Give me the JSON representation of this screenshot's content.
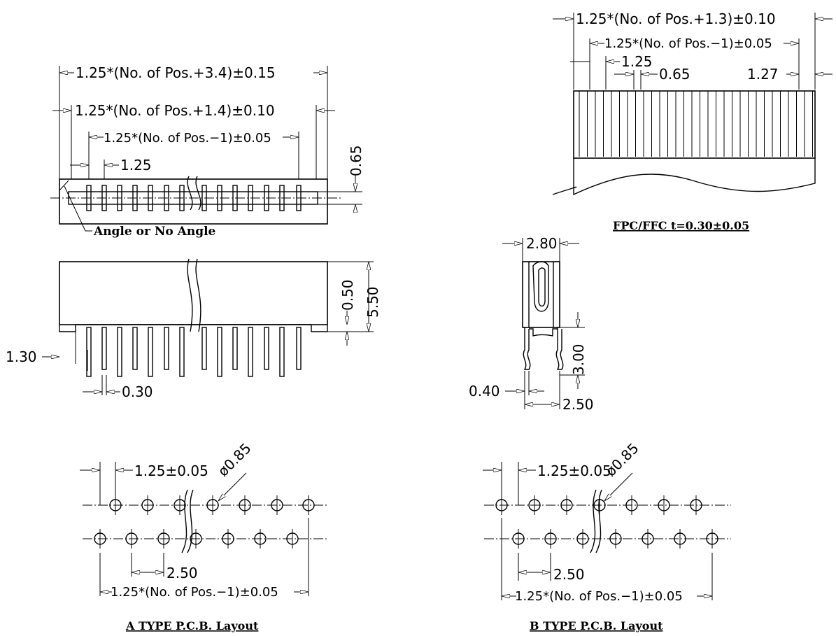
{
  "top_view": {
    "dim_overall": "1.25*(No. of Pos.+3.4)±0.15",
    "dim_inner": "1.25*(No. of Pos.+1.4)±0.10",
    "dim_pitch_span": "1.25*(No. of Pos.−1)±0.05",
    "dim_pitch": "1.25",
    "dim_height": "0.65",
    "angle_note": "Angle or No Angle"
  },
  "side_view": {
    "dim_height_total": "5.50",
    "dim_standoff": "0.50",
    "dim_pin_offset": "1.30",
    "dim_pin_width": "0.30"
  },
  "fpc": {
    "dim_overall": "1.25*(No. of Pos.+1.3)±0.10",
    "dim_pitch_span": "1.25*(No. of Pos.−1)±0.05",
    "dim_pitch": "1.25",
    "dim_width": "0.65",
    "dim_edge": "1.27",
    "caption": "FPC/FFC   t=0.30±0.05"
  },
  "end_view": {
    "dim_width": "2.80",
    "dim_pin_length": "3.00",
    "dim_pin": "0.40",
    "dim_row": "2.50"
  },
  "layout_a": {
    "dim_pitch": "1.25±0.05",
    "dim_hole": "ø0.85",
    "dim_row": "2.50",
    "dim_span": "1.25*(No. of Pos.−1)±0.05",
    "caption": "A TYPE P.C.B. Layout"
  },
  "layout_b": {
    "dim_pitch": "1.25±0.05",
    "dim_hole": "ø0.85",
    "dim_row": "2.50",
    "dim_span": "1.25*(No. of Pos.−1)±0.05",
    "caption": "B TYPE P.C.B. Layout"
  }
}
